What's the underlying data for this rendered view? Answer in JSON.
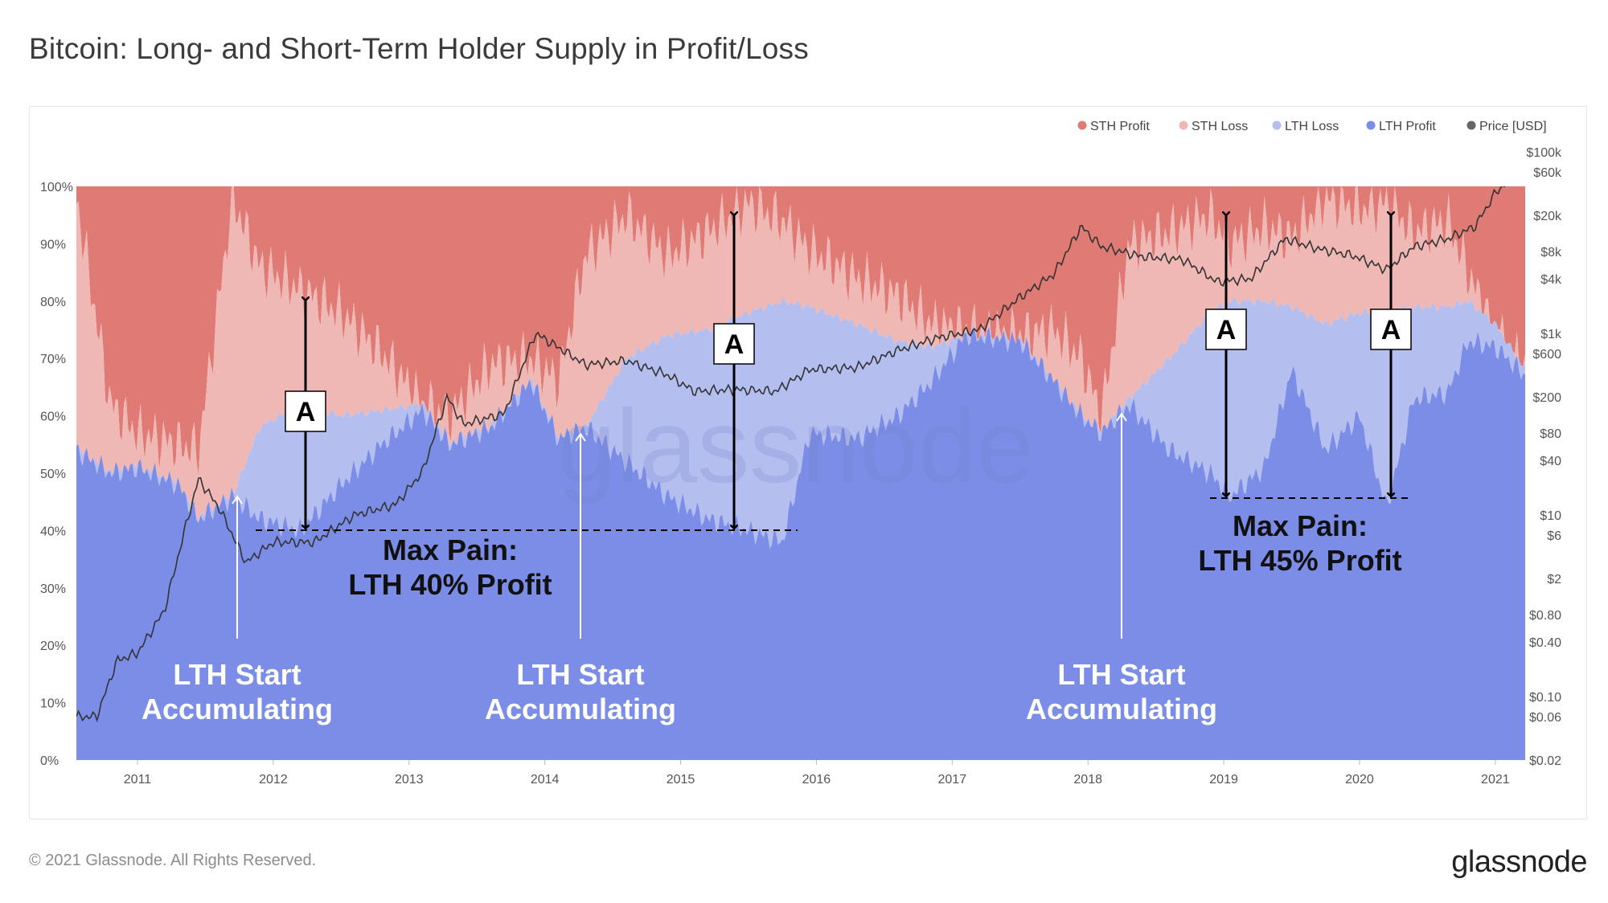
{
  "title": "Bitcoin: Long- and Short-Term Holder Supply in Profit/Loss",
  "footer": {
    "copyright": "© 2021 Glassnode. All Rights Reserved.",
    "logo": "glassnode"
  },
  "watermark": "glassnode",
  "colors": {
    "sth_profit": "#e07a74",
    "sth_loss": "#efb8b5",
    "lth_loss": "#b4bff0",
    "lth_profit": "#7b8de6",
    "price": "#333333"
  },
  "chart_data": {
    "type": "area",
    "stacked": true,
    "x_ticks": [
      "2011",
      "2012",
      "2013",
      "2014",
      "2015",
      "2016",
      "2017",
      "2018",
      "2019",
      "2020",
      "2021"
    ],
    "x_range": [
      2010.55,
      2021.22
    ],
    "y_left_ticks": [
      "100%",
      "90%",
      "80%",
      "70%",
      "60%",
      "50%",
      "40%",
      "30%",
      "20%",
      "10%",
      "0%"
    ],
    "y_left_range": [
      0,
      100
    ],
    "y_right_ticks": [
      {
        "label": "$100k",
        "value": 100000
      },
      {
        "label": "$60k",
        "value": 60000
      },
      {
        "label": "$20k",
        "value": 20000
      },
      {
        "label": "$8k",
        "value": 8000
      },
      {
        "label": "$4k",
        "value": 4000
      },
      {
        "label": "$1k",
        "value": 1000
      },
      {
        "label": "$600",
        "value": 600
      },
      {
        "label": "$200",
        "value": 200
      },
      {
        "label": "$80",
        "value": 80
      },
      {
        "label": "$40",
        "value": 40
      },
      {
        "label": "$10",
        "value": 10
      },
      {
        "label": "$6",
        "value": 6
      },
      {
        "label": "$2",
        "value": 2
      },
      {
        "label": "$0.80",
        "value": 0.8
      },
      {
        "label": "$0.40",
        "value": 0.4
      },
      {
        "label": "$0.10",
        "value": 0.1
      },
      {
        "label": "$0.06",
        "value": 0.06
      },
      {
        "label": "$0.02",
        "value": 0.02
      }
    ],
    "y_right_scale": "log",
    "legend": [
      "STH Profit",
      "STH Loss",
      "LTH Loss",
      "LTH Profit",
      "Price [USD]"
    ],
    "legend_position": "top-right",
    "series": {
      "lth_profit": [
        [
          2010.55,
          54
        ],
        [
          2010.8,
          50
        ],
        [
          2011.0,
          51
        ],
        [
          2011.3,
          48
        ],
        [
          2011.45,
          42
        ],
        [
          2011.7,
          46
        ],
        [
          2011.9,
          42
        ],
        [
          2012.2,
          40
        ],
        [
          2012.5,
          48
        ],
        [
          2012.8,
          55
        ],
        [
          2013.1,
          61
        ],
        [
          2013.3,
          55
        ],
        [
          2013.6,
          58
        ],
        [
          2013.9,
          66
        ],
        [
          2014.1,
          56
        ],
        [
          2014.3,
          58
        ],
        [
          2014.6,
          52
        ],
        [
          2014.9,
          46
        ],
        [
          2015.2,
          42
        ],
        [
          2015.5,
          40
        ],
        [
          2015.75,
          38
        ],
        [
          2015.95,
          57
        ],
        [
          2016.3,
          56
        ],
        [
          2016.6,
          60
        ],
        [
          2016.85,
          66
        ],
        [
          2017.1,
          74
        ],
        [
          2017.5,
          73
        ],
        [
          2017.75,
          66
        ],
        [
          2017.95,
          60
        ],
        [
          2018.1,
          57
        ],
        [
          2018.3,
          62
        ],
        [
          2018.6,
          54
        ],
        [
          2018.9,
          50
        ],
        [
          2019.05,
          46
        ],
        [
          2019.3,
          51
        ],
        [
          2019.5,
          68
        ],
        [
          2019.75,
          54
        ],
        [
          2020.0,
          60
        ],
        [
          2020.2,
          44
        ],
        [
          2020.4,
          63
        ],
        [
          2020.65,
          64
        ],
        [
          2020.8,
          73
        ],
        [
          2021.0,
          72
        ],
        [
          2021.22,
          67
        ]
      ],
      "lth_total": [
        [
          2010.55,
          54
        ],
        [
          2010.8,
          50
        ],
        [
          2011.0,
          51
        ],
        [
          2011.3,
          48
        ],
        [
          2011.45,
          42
        ],
        [
          2011.7,
          46
        ],
        [
          2011.9,
          58
        ],
        [
          2012.2,
          62
        ],
        [
          2012.5,
          60
        ],
        [
          2012.8,
          61
        ],
        [
          2013.1,
          62
        ],
        [
          2013.3,
          55
        ],
        [
          2013.6,
          58
        ],
        [
          2013.9,
          66
        ],
        [
          2014.1,
          56
        ],
        [
          2014.3,
          58
        ],
        [
          2014.6,
          70
        ],
        [
          2014.9,
          74
        ],
        [
          2015.2,
          75
        ],
        [
          2015.5,
          78
        ],
        [
          2015.75,
          80
        ],
        [
          2015.95,
          79
        ],
        [
          2016.3,
          76
        ],
        [
          2016.6,
          73
        ],
        [
          2016.85,
          72
        ],
        [
          2017.1,
          74
        ],
        [
          2017.5,
          73
        ],
        [
          2017.75,
          66
        ],
        [
          2017.95,
          60
        ],
        [
          2018.1,
          57
        ],
        [
          2018.3,
          63
        ],
        [
          2018.6,
          70
        ],
        [
          2018.9,
          78
        ],
        [
          2019.05,
          80
        ],
        [
          2019.3,
          80
        ],
        [
          2019.5,
          79
        ],
        [
          2019.75,
          76
        ],
        [
          2020.0,
          78
        ],
        [
          2020.2,
          78
        ],
        [
          2020.4,
          79
        ],
        [
          2020.65,
          79
        ],
        [
          2020.8,
          80
        ],
        [
          2021.0,
          76
        ],
        [
          2021.22,
          68
        ]
      ],
      "sth_loss_top": [
        [
          2010.55,
          98
        ],
        [
          2010.8,
          62
        ],
        [
          2011.0,
          57
        ],
        [
          2011.3,
          55
        ],
        [
          2011.45,
          54
        ],
        [
          2011.7,
          98
        ],
        [
          2011.9,
          86
        ],
        [
          2012.2,
          82
        ],
        [
          2012.5,
          78
        ],
        [
          2012.8,
          71
        ],
        [
          2013.1,
          62
        ],
        [
          2013.3,
          60
        ],
        [
          2013.6,
          69
        ],
        [
          2013.9,
          70
        ],
        [
          2014.1,
          66
        ],
        [
          2014.3,
          88
        ],
        [
          2014.6,
          95
        ],
        [
          2014.9,
          88
        ],
        [
          2015.2,
          92
        ],
        [
          2015.5,
          97
        ],
        [
          2015.75,
          94
        ],
        [
          2015.95,
          89
        ],
        [
          2016.3,
          84
        ],
        [
          2016.6,
          81
        ],
        [
          2016.85,
          76
        ],
        [
          2017.1,
          75
        ],
        [
          2017.5,
          74
        ],
        [
          2017.75,
          75
        ],
        [
          2017.95,
          70
        ],
        [
          2018.1,
          60
        ],
        [
          2018.3,
          90
        ],
        [
          2018.6,
          92
        ],
        [
          2018.9,
          95
        ],
        [
          2019.05,
          90
        ],
        [
          2019.3,
          93
        ],
        [
          2019.5,
          91
        ],
        [
          2019.75,
          98
        ],
        [
          2020.0,
          96
        ],
        [
          2020.2,
          97
        ],
        [
          2020.4,
          92
        ],
        [
          2020.65,
          94
        ],
        [
          2020.8,
          85
        ],
        [
          2021.0,
          74
        ],
        [
          2021.22,
          68
        ]
      ],
      "price_usd": [
        [
          2010.55,
          0.06
        ],
        [
          2010.7,
          0.06
        ],
        [
          2010.85,
          0.25
        ],
        [
          2011.0,
          0.3
        ],
        [
          2011.2,
          0.9
        ],
        [
          2011.35,
          7
        ],
        [
          2011.45,
          25
        ],
        [
          2011.6,
          12
        ],
        [
          2011.8,
          3
        ],
        [
          2012.0,
          5
        ],
        [
          2012.3,
          5
        ],
        [
          2012.6,
          10
        ],
        [
          2012.9,
          13
        ],
        [
          2013.1,
          30
        ],
        [
          2013.28,
          200
        ],
        [
          2013.4,
          100
        ],
        [
          2013.7,
          130
        ],
        [
          2013.93,
          1000
        ],
        [
          2014.1,
          700
        ],
        [
          2014.3,
          450
        ],
        [
          2014.6,
          500
        ],
        [
          2014.9,
          350
        ],
        [
          2015.1,
          230
        ],
        [
          2015.4,
          240
        ],
        [
          2015.7,
          230
        ],
        [
          2015.95,
          400
        ],
        [
          2016.3,
          420
        ],
        [
          2016.6,
          650
        ],
        [
          2016.9,
          900
        ],
        [
          2017.2,
          1100
        ],
        [
          2017.5,
          2500
        ],
        [
          2017.75,
          4500
        ],
        [
          2017.95,
          15000
        ],
        [
          2018.1,
          9000
        ],
        [
          2018.4,
          7000
        ],
        [
          2018.7,
          6500
        ],
        [
          2018.95,
          3700
        ],
        [
          2019.2,
          4000
        ],
        [
          2019.45,
          11000
        ],
        [
          2019.7,
          8500
        ],
        [
          2019.95,
          7200
        ],
        [
          2020.2,
          5000
        ],
        [
          2020.4,
          9000
        ],
        [
          2020.65,
          11000
        ],
        [
          2020.85,
          15000
        ],
        [
          2021.0,
          35000
        ],
        [
          2021.15,
          58000
        ],
        [
          2021.22,
          60000
        ]
      ]
    },
    "annotations": {
      "box_label": "A",
      "lth_start": [
        "LTH Start",
        "Accumulating"
      ],
      "max_pain_1": [
        "Max Pain:",
        "LTH 40% Profit"
      ],
      "max_pain_2": [
        "Max Pain:",
        "LTH 45% Profit"
      ]
    }
  }
}
